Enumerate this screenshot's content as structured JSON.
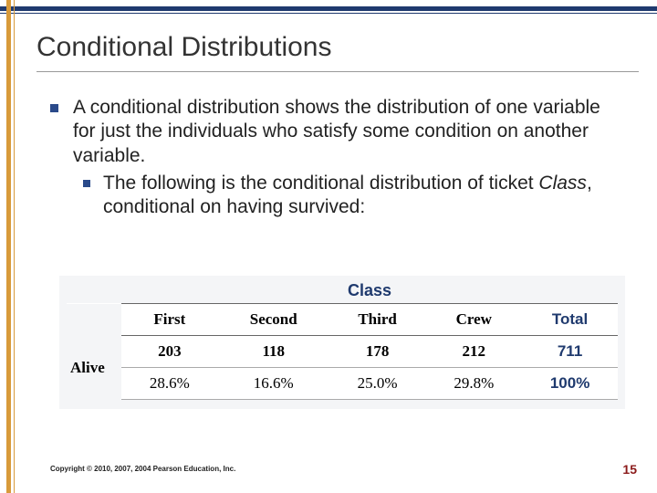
{
  "slide": {
    "title": "Conditional Distributions",
    "bullet1": {
      "prefix": "A ",
      "term": "conditional distribution",
      "rest": " shows the distribution of one variable for just the individuals who satisfy some condition on another variable."
    },
    "bullet2": {
      "prefix": "The following is the conditional distribution of ticket ",
      "italic": "Class",
      "rest": ", conditional on having survived:"
    }
  },
  "table": {
    "group_label": "Class",
    "columns": [
      "First",
      "Second",
      "Third",
      "Crew"
    ],
    "total_label": "Total",
    "row_label": "Alive",
    "counts": [
      "203",
      "118",
      "178",
      "212"
    ],
    "count_total": "711",
    "percents": [
      "28.6%",
      "16.6%",
      "25.0%",
      "29.8%"
    ],
    "percent_total": "100%",
    "colors": {
      "header_text": "#1f3a6e",
      "total_text": "#1f3a6e",
      "bg": "#f4f5f7",
      "border": "#666666"
    }
  },
  "footer": {
    "copyright": "Copyright © 2010, 2007, 2004 Pearson Education, Inc.",
    "page": "15"
  },
  "theme": {
    "top_bar": "#1f3a6e",
    "left_bar": "#d89a3a",
    "bullet_color": "#2a4a8a",
    "pagenum_color": "#8b1a1a"
  }
}
